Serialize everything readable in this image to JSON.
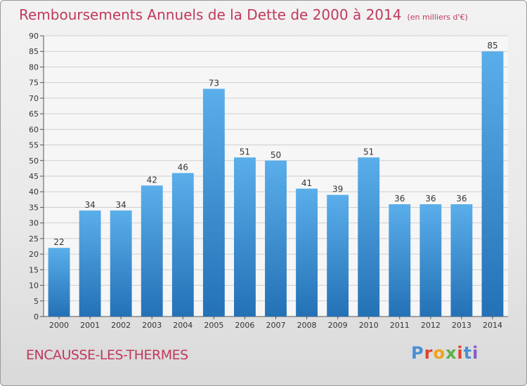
{
  "title": "Remboursements Annuels de la Dette de 2000 à 2014",
  "subtitle": "(en milliers d'€)",
  "commune": "ENCAUSSE-LES-THERMES",
  "logo": {
    "text": "Proxiti",
    "colors": [
      "#4a8fd6",
      "#e0432f",
      "#f0a21c",
      "#5bb045",
      "#e0432f",
      "#4a8fd6",
      "#8a5cc6"
    ]
  },
  "colors": {
    "bar_light": "#5aaeea",
    "bar_dark": "#2471b6",
    "title": "#c0395c",
    "grid": "#cfcfcf"
  },
  "chart_data": {
    "type": "bar",
    "categories": [
      "2000",
      "2001",
      "2002",
      "2003",
      "2004",
      "2005",
      "2006",
      "2007",
      "2008",
      "2009",
      "2010",
      "2011",
      "2012",
      "2013",
      "2014"
    ],
    "values": [
      22,
      34,
      34,
      42,
      46,
      73,
      51,
      50,
      41,
      39,
      51,
      36,
      36,
      36,
      85
    ],
    "ylim": [
      0,
      90
    ],
    "yticks": [
      0,
      5,
      10,
      15,
      20,
      25,
      30,
      35,
      40,
      45,
      50,
      55,
      60,
      65,
      70,
      75,
      80,
      85,
      90
    ],
    "grid": true,
    "data_labels": true
  }
}
